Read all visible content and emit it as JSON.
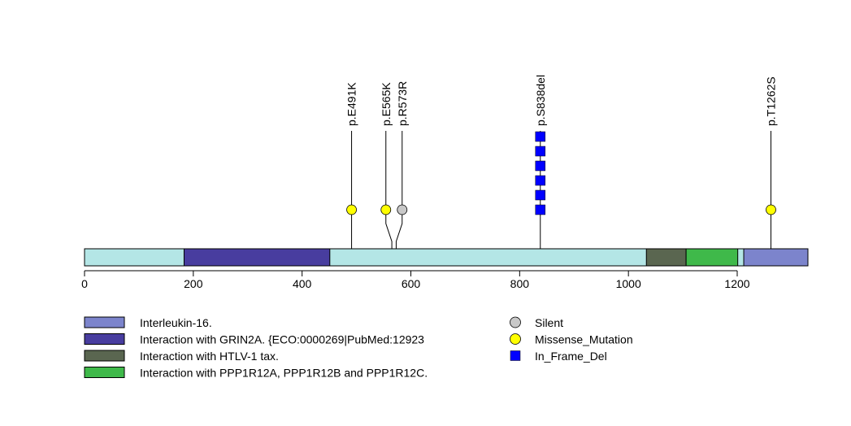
{
  "chart_data": {
    "type": "lollipop",
    "protein_length": 1330,
    "xlim": [
      0,
      1330
    ],
    "ticks": [
      0,
      200,
      400,
      600,
      800,
      1000,
      1200
    ],
    "backbone_color": "#b4e6e6",
    "domains": [
      {
        "start": 183,
        "end": 451,
        "color": "#483d9f",
        "legend": "Interaction with GRIN2A. {ECO:0000269|PubMed:12923"
      },
      {
        "start": 1033,
        "end": 1106,
        "color": "#5a6650",
        "legend": "Interaction with HTLV-1 tax."
      },
      {
        "start": 1106,
        "end": 1201,
        "color": "#3fb94a",
        "legend": "Interaction with PPP1R12A, PPP1R12B and PPP1R12C."
      },
      {
        "start": 1212,
        "end": 1330,
        "color": "#7c84cc",
        "legend": "Interleukin-16."
      }
    ],
    "mutations": [
      {
        "label": "p.E491K",
        "position": 491,
        "type": "Missense_Mutation",
        "count": 1
      },
      {
        "label": "p.E565K",
        "position": 565,
        "type": "Missense_Mutation",
        "count": 1
      },
      {
        "label": "p.R573R",
        "position": 573,
        "type": "Silent",
        "count": 1
      },
      {
        "label": "p.S838del",
        "position": 838,
        "type": "In_Frame_Del",
        "count": 6
      },
      {
        "label": "p.T1262S",
        "position": 1262,
        "type": "Missense_Mutation",
        "count": 1
      }
    ],
    "domain_legend_order": [
      3,
      0,
      1,
      2
    ],
    "mutation_legend": [
      {
        "label": "Silent",
        "shape": "circle",
        "color": "#c8c8c8"
      },
      {
        "label": "Missense_Mutation",
        "shape": "circle",
        "color": "#ffff00"
      },
      {
        "label": "In_Frame_Del",
        "shape": "square",
        "color": "#0000ff"
      }
    ]
  }
}
